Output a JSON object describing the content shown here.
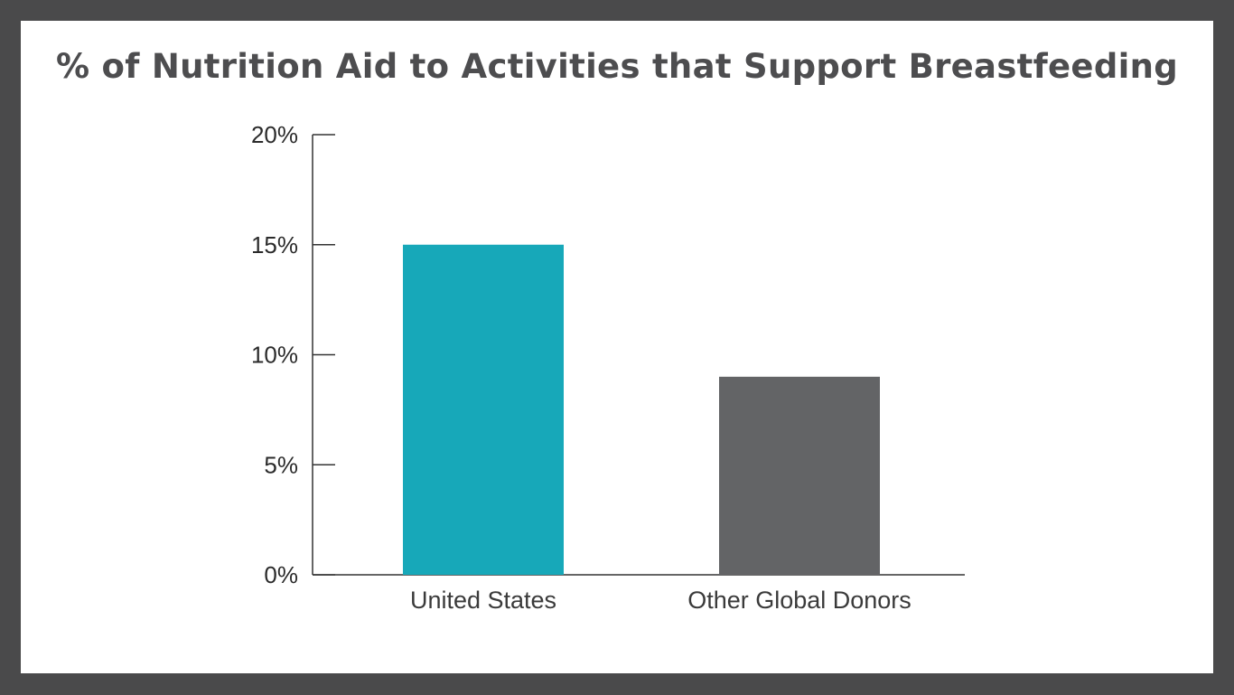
{
  "chart_data": {
    "type": "bar",
    "title": "% of Nutrition Aid to Activities that Support Breastfeeding",
    "xlabel": "",
    "ylabel": "",
    "categories": [
      "United States",
      "Other Global Donors"
    ],
    "values": [
      15,
      9
    ],
    "colors": [
      "#17a8b9",
      "#636466"
    ],
    "ylim": [
      0,
      20
    ],
    "yticks": [
      0,
      5,
      10,
      15,
      20
    ],
    "ytick_labels": [
      "0%",
      "5%",
      "10%",
      "15%",
      "20%"
    ],
    "grid": false,
    "legend": "none"
  },
  "colors": {
    "frame": "#4a4a4b",
    "background": "#ffffff",
    "title": "#4d4d4f",
    "axis": "#333333"
  }
}
